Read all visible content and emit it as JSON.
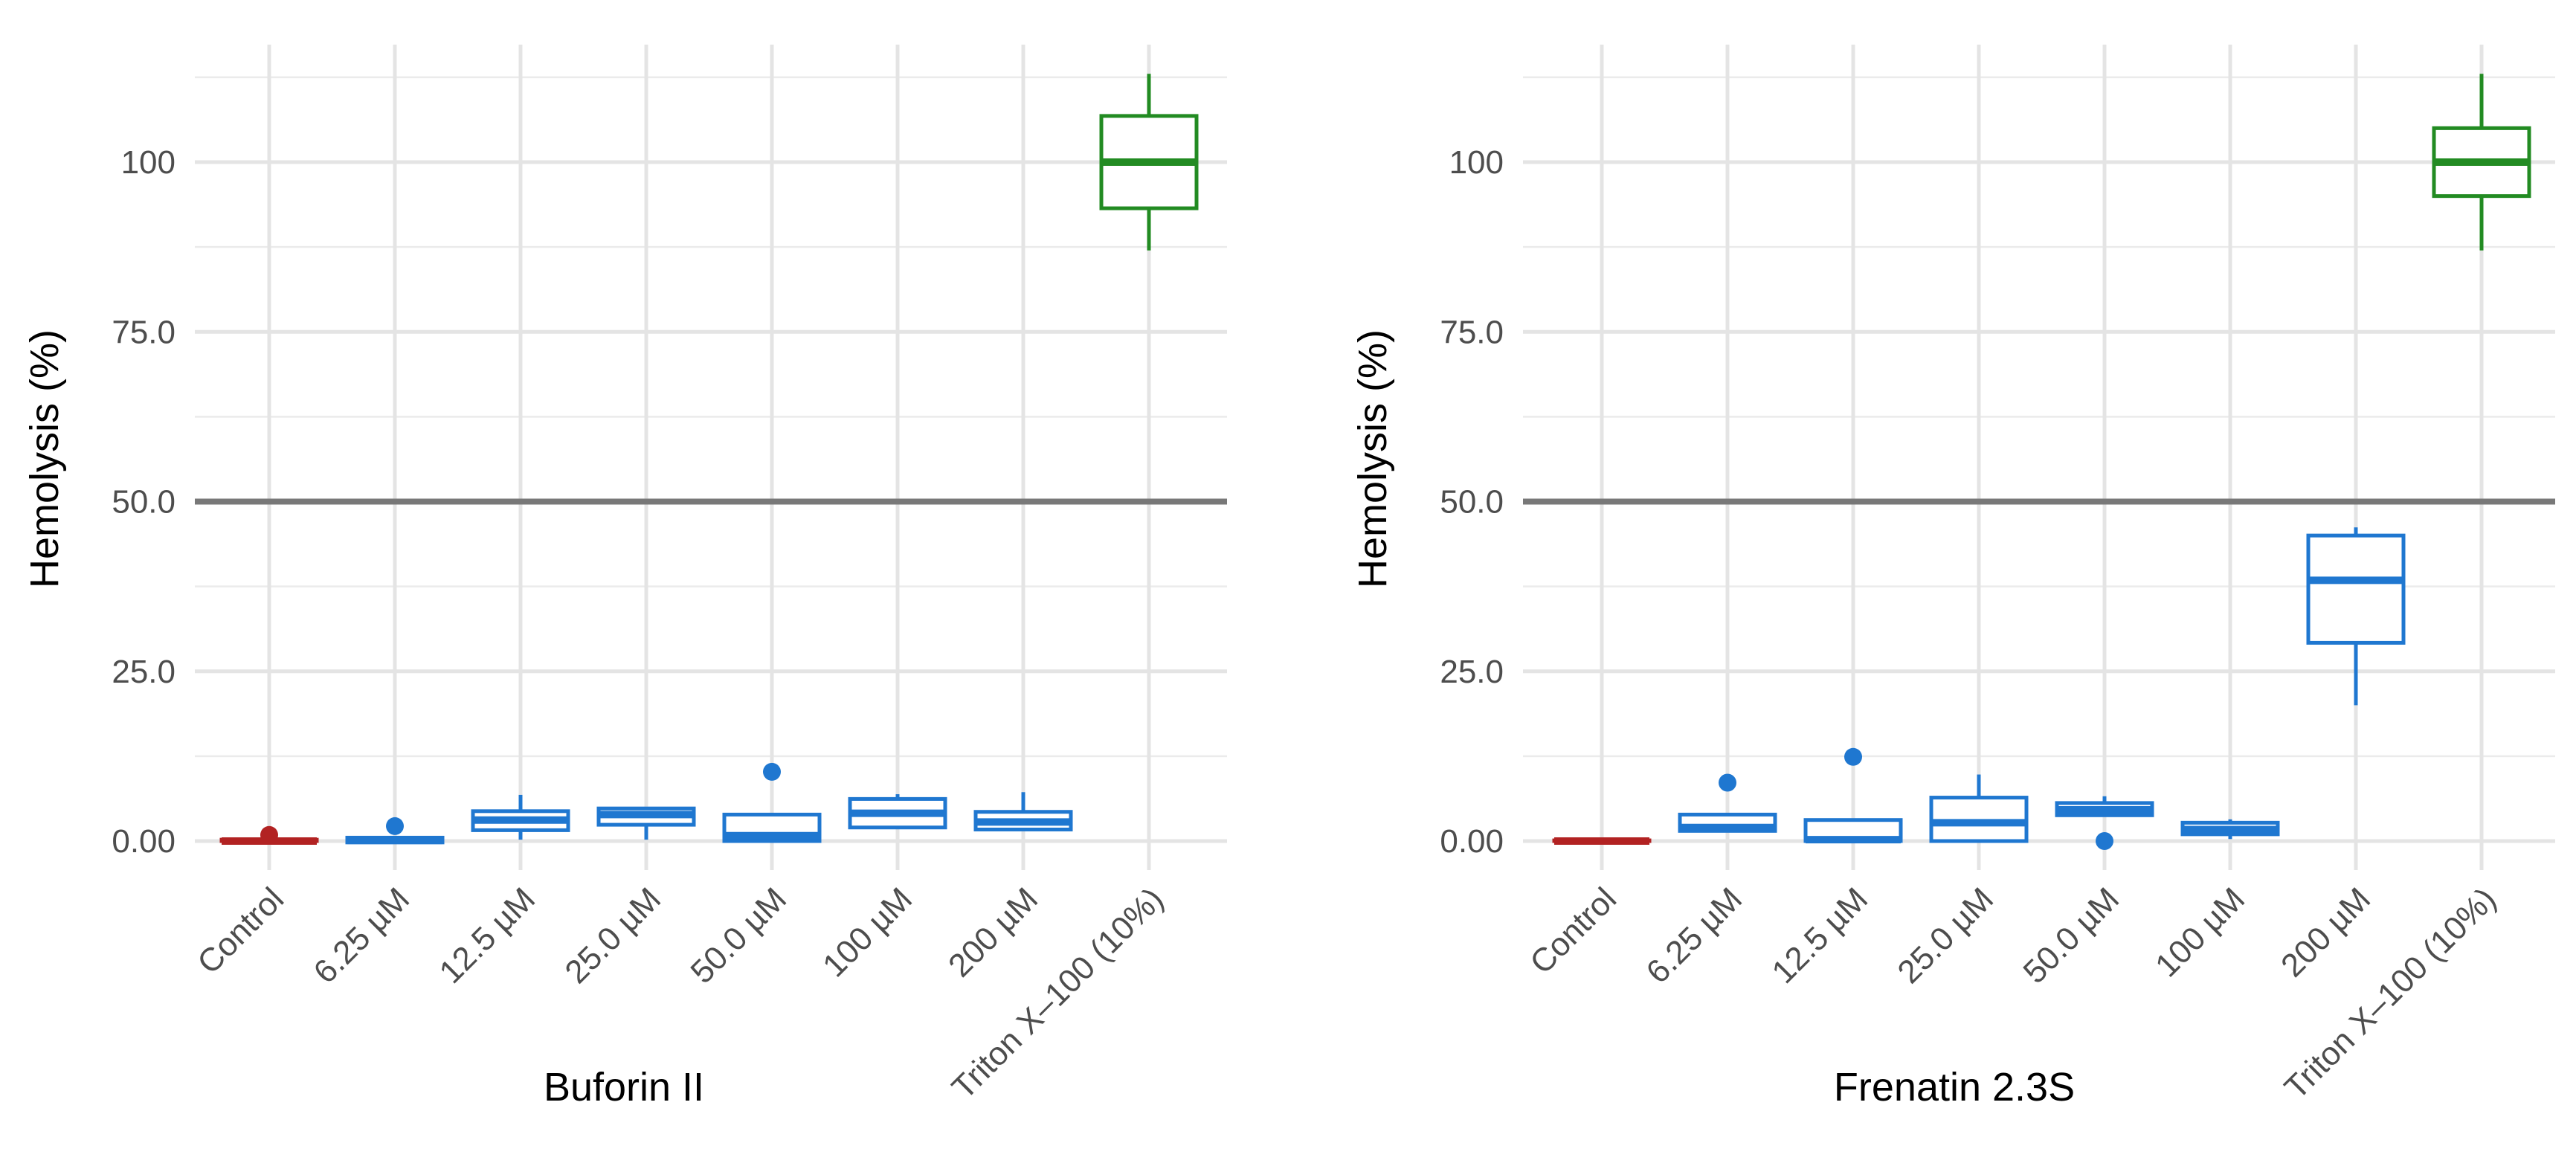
{
  "chart_data": [
    {
      "type": "box",
      "xlabel": "Buforin II",
      "ylabel": "Hemolysis (%)",
      "ylim": [
        -6,
        118
      ],
      "yticks": [
        0,
        25,
        50,
        75,
        100
      ],
      "ytick_labels": [
        "0.00",
        "25.0",
        "50.0",
        "75.0",
        "100"
      ],
      "reference_line": 50,
      "grid": true,
      "categories": [
        "Control",
        "6.25 µM",
        "12.5 µM",
        "25.0 µM",
        "50.0 µM",
        "100 µM",
        "200 µM",
        "Triton X–100 (10%)"
      ],
      "boxes": [
        {
          "low": 0.0,
          "q1": 0.0,
          "median": 0.0,
          "q3": 0.2,
          "high": 0.4,
          "outliers": [
            0.9
          ],
          "color": "#b22222"
        },
        {
          "low": -0.2,
          "q1": -0.2,
          "median": 0.1,
          "q3": 0.5,
          "high": 0.7,
          "outliers": [
            2.2
          ],
          "color": "#1f77d0"
        },
        {
          "low": 0.2,
          "q1": 1.6,
          "median": 3.1,
          "q3": 4.4,
          "high": 6.8,
          "outliers": [],
          "color": "#1f77d0"
        },
        {
          "low": 0.2,
          "q1": 2.4,
          "median": 3.9,
          "q3": 4.8,
          "high": 5.0,
          "outliers": [],
          "color": "#1f77d0"
        },
        {
          "low": 0.0,
          "q1": 0.0,
          "median": 0.8,
          "q3": 3.9,
          "high": 4.0,
          "outliers": [
            10.2
          ],
          "color": "#1f77d0"
        },
        {
          "low": 1.9,
          "q1": 2.0,
          "median": 4.1,
          "q3": 6.2,
          "high": 6.9,
          "outliers": [],
          "color": "#1f77d0"
        },
        {
          "low": 1.5,
          "q1": 1.7,
          "median": 2.8,
          "q3": 4.3,
          "high": 7.2,
          "outliers": [],
          "color": "#1f77d0"
        },
        {
          "low": 87.0,
          "q1": 93.2,
          "median": 100.0,
          "q3": 106.8,
          "high": 113.0,
          "outliers": [],
          "color": "#228b22"
        }
      ]
    },
    {
      "type": "box",
      "xlabel": "Frenatin 2.3S",
      "ylabel": "Hemolysis (%)",
      "ylim": [
        -6,
        118
      ],
      "yticks": [
        0,
        25,
        50,
        75,
        100
      ],
      "ytick_labels": [
        "0.00",
        "25.0",
        "50.0",
        "75.0",
        "100"
      ],
      "reference_line": 50,
      "grid": true,
      "categories": [
        "Control",
        "6.25 µM",
        "12.5 µM",
        "25.0 µM",
        "50.0 µM",
        "100 µM",
        "200 µM",
        "Triton X–100 (10%)"
      ],
      "boxes": [
        {
          "low": 0.0,
          "q1": 0.0,
          "median": 0.0,
          "q3": 0.1,
          "high": 0.1,
          "outliers": [],
          "color": "#b22222"
        },
        {
          "low": 1.3,
          "q1": 1.5,
          "median": 2.0,
          "q3": 3.9,
          "high": 4.0,
          "outliers": [
            8.6
          ],
          "color": "#1f77d0"
        },
        {
          "low": 0.0,
          "q1": 0.0,
          "median": 0.2,
          "q3": 3.1,
          "high": 3.3,
          "outliers": [
            12.4
          ],
          "color": "#1f77d0"
        },
        {
          "low": 0.0,
          "q1": 0.0,
          "median": 2.7,
          "q3": 6.4,
          "high": 9.8,
          "outliers": [],
          "color": "#1f77d0"
        },
        {
          "low": 3.6,
          "q1": 3.8,
          "median": 4.6,
          "q3": 5.6,
          "high": 6.6,
          "outliers": [
            0.0
          ],
          "color": "#1f77d0"
        },
        {
          "low": 0.3,
          "q1": 1.0,
          "median": 1.7,
          "q3": 2.7,
          "high": 3.2,
          "outliers": [],
          "color": "#1f77d0"
        },
        {
          "low": 20.0,
          "q1": 29.2,
          "median": 38.4,
          "q3": 45.0,
          "high": 46.2,
          "outliers": [],
          "color": "#1f77d0"
        },
        {
          "low": 87.0,
          "q1": 95.0,
          "median": 100.0,
          "q3": 105.0,
          "high": 113.0,
          "outliers": [],
          "color": "#228b22"
        }
      ]
    }
  ]
}
